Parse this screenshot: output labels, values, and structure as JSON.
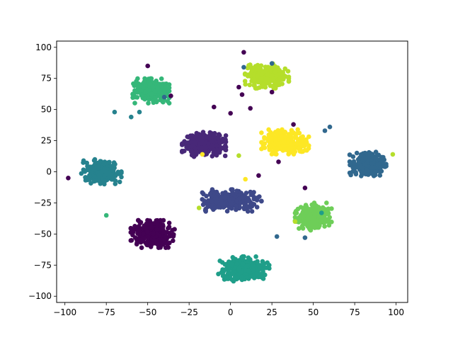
{
  "chart_data": {
    "type": "scatter",
    "title": "",
    "xlabel": "",
    "ylabel": "",
    "xlim": [
      -105,
      107
    ],
    "ylim": [
      -105,
      105
    ],
    "grid": false,
    "legend": "none",
    "x_ticks": [
      -100,
      -75,
      -50,
      -25,
      0,
      25,
      50,
      75,
      100
    ],
    "y_ticks": [
      -100,
      -75,
      -50,
      -25,
      0,
      25,
      50,
      75,
      100
    ],
    "x_tick_labels": [
      "−100",
      "−75",
      "−50",
      "−25",
      "0",
      "25",
      "50",
      "75",
      "100"
    ],
    "y_tick_labels": [
      "−100",
      "−75",
      "−50",
      "−25",
      "0",
      "25",
      "50",
      "75",
      "100"
    ],
    "series": [
      {
        "color": "#440154",
        "center": [
          -47,
          -50
        ],
        "spread": [
          12,
          10
        ],
        "count": 260
      },
      {
        "color": "#482878",
        "center": [
          -16,
          22
        ],
        "spread": [
          12,
          9
        ],
        "count": 240
      },
      {
        "color": "#3e4989",
        "center": [
          0,
          -23
        ],
        "spread": [
          17,
          8
        ],
        "count": 260
      },
      {
        "color": "#31688e",
        "center": [
          83,
          6
        ],
        "spread": [
          10,
          9
        ],
        "count": 230
      },
      {
        "color": "#26828e",
        "center": [
          -78,
          0
        ],
        "spread": [
          11,
          9
        ],
        "count": 230
      },
      {
        "color": "#1f9e89",
        "center": [
          8,
          -78
        ],
        "spread": [
          14,
          9
        ],
        "count": 250
      },
      {
        "color": "#35b779",
        "center": [
          -48,
          65
        ],
        "spread": [
          10,
          9
        ],
        "count": 220
      },
      {
        "color": "#6ece58",
        "center": [
          50,
          -36
        ],
        "spread": [
          10,
          10
        ],
        "count": 220
      },
      {
        "color": "#b5de2b",
        "center": [
          22,
          77
        ],
        "spread": [
          12,
          9
        ],
        "count": 230
      },
      {
        "color": "#fde725",
        "center": [
          33,
          24
        ],
        "spread": [
          13,
          9
        ],
        "count": 250
      }
    ],
    "outliers": [
      {
        "x": -50,
        "y": 85,
        "color": "#440154"
      },
      {
        "x": 8,
        "y": 96,
        "color": "#440154"
      },
      {
        "x": 5,
        "y": 68,
        "color": "#440154"
      },
      {
        "x": 7,
        "y": 62,
        "color": "#440154"
      },
      {
        "x": 25,
        "y": 64,
        "color": "#440154"
      },
      {
        "x": 12,
        "y": 51,
        "color": "#440154"
      },
      {
        "x": -10,
        "y": 52,
        "color": "#440154"
      },
      {
        "x": 0,
        "y": 47,
        "color": "#440154"
      },
      {
        "x": 45,
        "y": -13,
        "color": "#440154"
      },
      {
        "x": 29,
        "y": 8,
        "color": "#440154"
      },
      {
        "x": 17,
        "y": -3,
        "color": "#440154"
      },
      {
        "x": 38,
        "y": 38,
        "color": "#440154"
      },
      {
        "x": -98,
        "y": -5,
        "color": "#440154"
      },
      {
        "x": -36,
        "y": 61,
        "color": "#440154"
      },
      {
        "x": 57,
        "y": 33,
        "color": "#31688e"
      },
      {
        "x": 28,
        "y": -52,
        "color": "#31688e"
      },
      {
        "x": 45,
        "y": -53,
        "color": "#31688e"
      },
      {
        "x": -40,
        "y": 60,
        "color": "#31688e"
      },
      {
        "x": 8,
        "y": 84,
        "color": "#31688e"
      },
      {
        "x": 25,
        "y": 87,
        "color": "#31688e"
      },
      {
        "x": 60,
        "y": 36,
        "color": "#31688e"
      },
      {
        "x": -70,
        "y": 48,
        "color": "#26828e"
      },
      {
        "x": -60,
        "y": 44,
        "color": "#26828e"
      },
      {
        "x": -55,
        "y": 48,
        "color": "#26828e"
      },
      {
        "x": -17,
        "y": 14,
        "color": "#fde725"
      },
      {
        "x": 9,
        "y": -6,
        "color": "#fde725"
      },
      {
        "x": -19,
        "y": -29,
        "color": "#b5de2b"
      },
      {
        "x": 39,
        "y": -40,
        "color": "#b5de2b"
      },
      {
        "x": 55,
        "y": -33,
        "color": "#1f9e89"
      },
      {
        "x": -75,
        "y": -35,
        "color": "#35b779"
      },
      {
        "x": 5,
        "y": 13,
        "color": "#b5de2b"
      },
      {
        "x": 98,
        "y": 14,
        "color": "#b5de2b"
      }
    ]
  }
}
